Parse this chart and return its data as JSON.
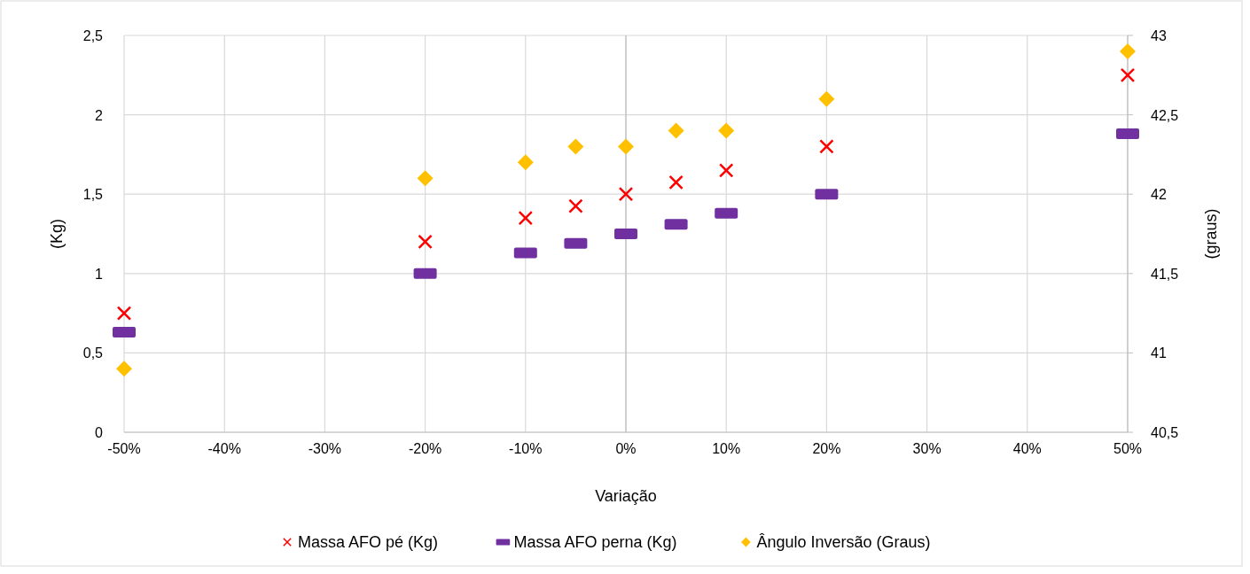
{
  "chart_data": {
    "type": "scatter",
    "xlabel": "Variação",
    "ylabel": "(Kg)",
    "y2label": "(graus)",
    "x": [
      -50,
      -20,
      -10,
      -5,
      0,
      5,
      10,
      20,
      50
    ],
    "xlim": [
      -50,
      50
    ],
    "xticks": [
      {
        "value": -50,
        "label": "-50%"
      },
      {
        "value": -40,
        "label": "-40%"
      },
      {
        "value": -30,
        "label": "-30%"
      },
      {
        "value": -20,
        "label": "-20%"
      },
      {
        "value": -10,
        "label": "-10%"
      },
      {
        "value": 0,
        "label": "0%"
      },
      {
        "value": 10,
        "label": "10%"
      },
      {
        "value": 20,
        "label": "20%"
      },
      {
        "value": 30,
        "label": "30%"
      },
      {
        "value": 40,
        "label": "40%"
      },
      {
        "value": 50,
        "label": "50%"
      }
    ],
    "ylim": [
      0,
      2.5
    ],
    "yticks": [
      0,
      {
        "value": 0.5,
        "label": "0,5"
      },
      1,
      {
        "value": 1.5,
        "label": "1,5"
      },
      2,
      {
        "value": 2.5,
        "label": "2,5"
      }
    ],
    "y2lim": [
      40.5,
      43
    ],
    "y2ticks": [
      {
        "value": 40.5,
        "label": "40,5"
      },
      41,
      {
        "value": 41.5,
        "label": "41,5"
      },
      42,
      {
        "value": 42.5,
        "label": "42,5"
      },
      43
    ],
    "grid": true,
    "legend": "bottom",
    "series": [
      {
        "name": "Massa AFO pé (Kg)",
        "color": "#ff0000",
        "marker": "cross",
        "values": [
          0.75,
          1.2,
          1.35,
          1.425,
          1.5,
          1.575,
          1.65,
          1.8,
          2.25
        ]
      },
      {
        "name": "Massa AFO perna (Kg)",
        "color": "#7030a0",
        "marker": "square",
        "values": [
          0.63,
          1.0,
          1.13,
          1.19,
          1.25,
          1.31,
          1.38,
          1.5,
          1.88
        ]
      },
      {
        "name": "Ângulo Inversão (Graus)",
        "color": "#ffc000",
        "marker": "diamond",
        "axis": "y2",
        "values": [
          40.9,
          42.1,
          42.2,
          42.3,
          42.3,
          42.4,
          42.4,
          42.6,
          42.9
        ]
      }
    ]
  }
}
